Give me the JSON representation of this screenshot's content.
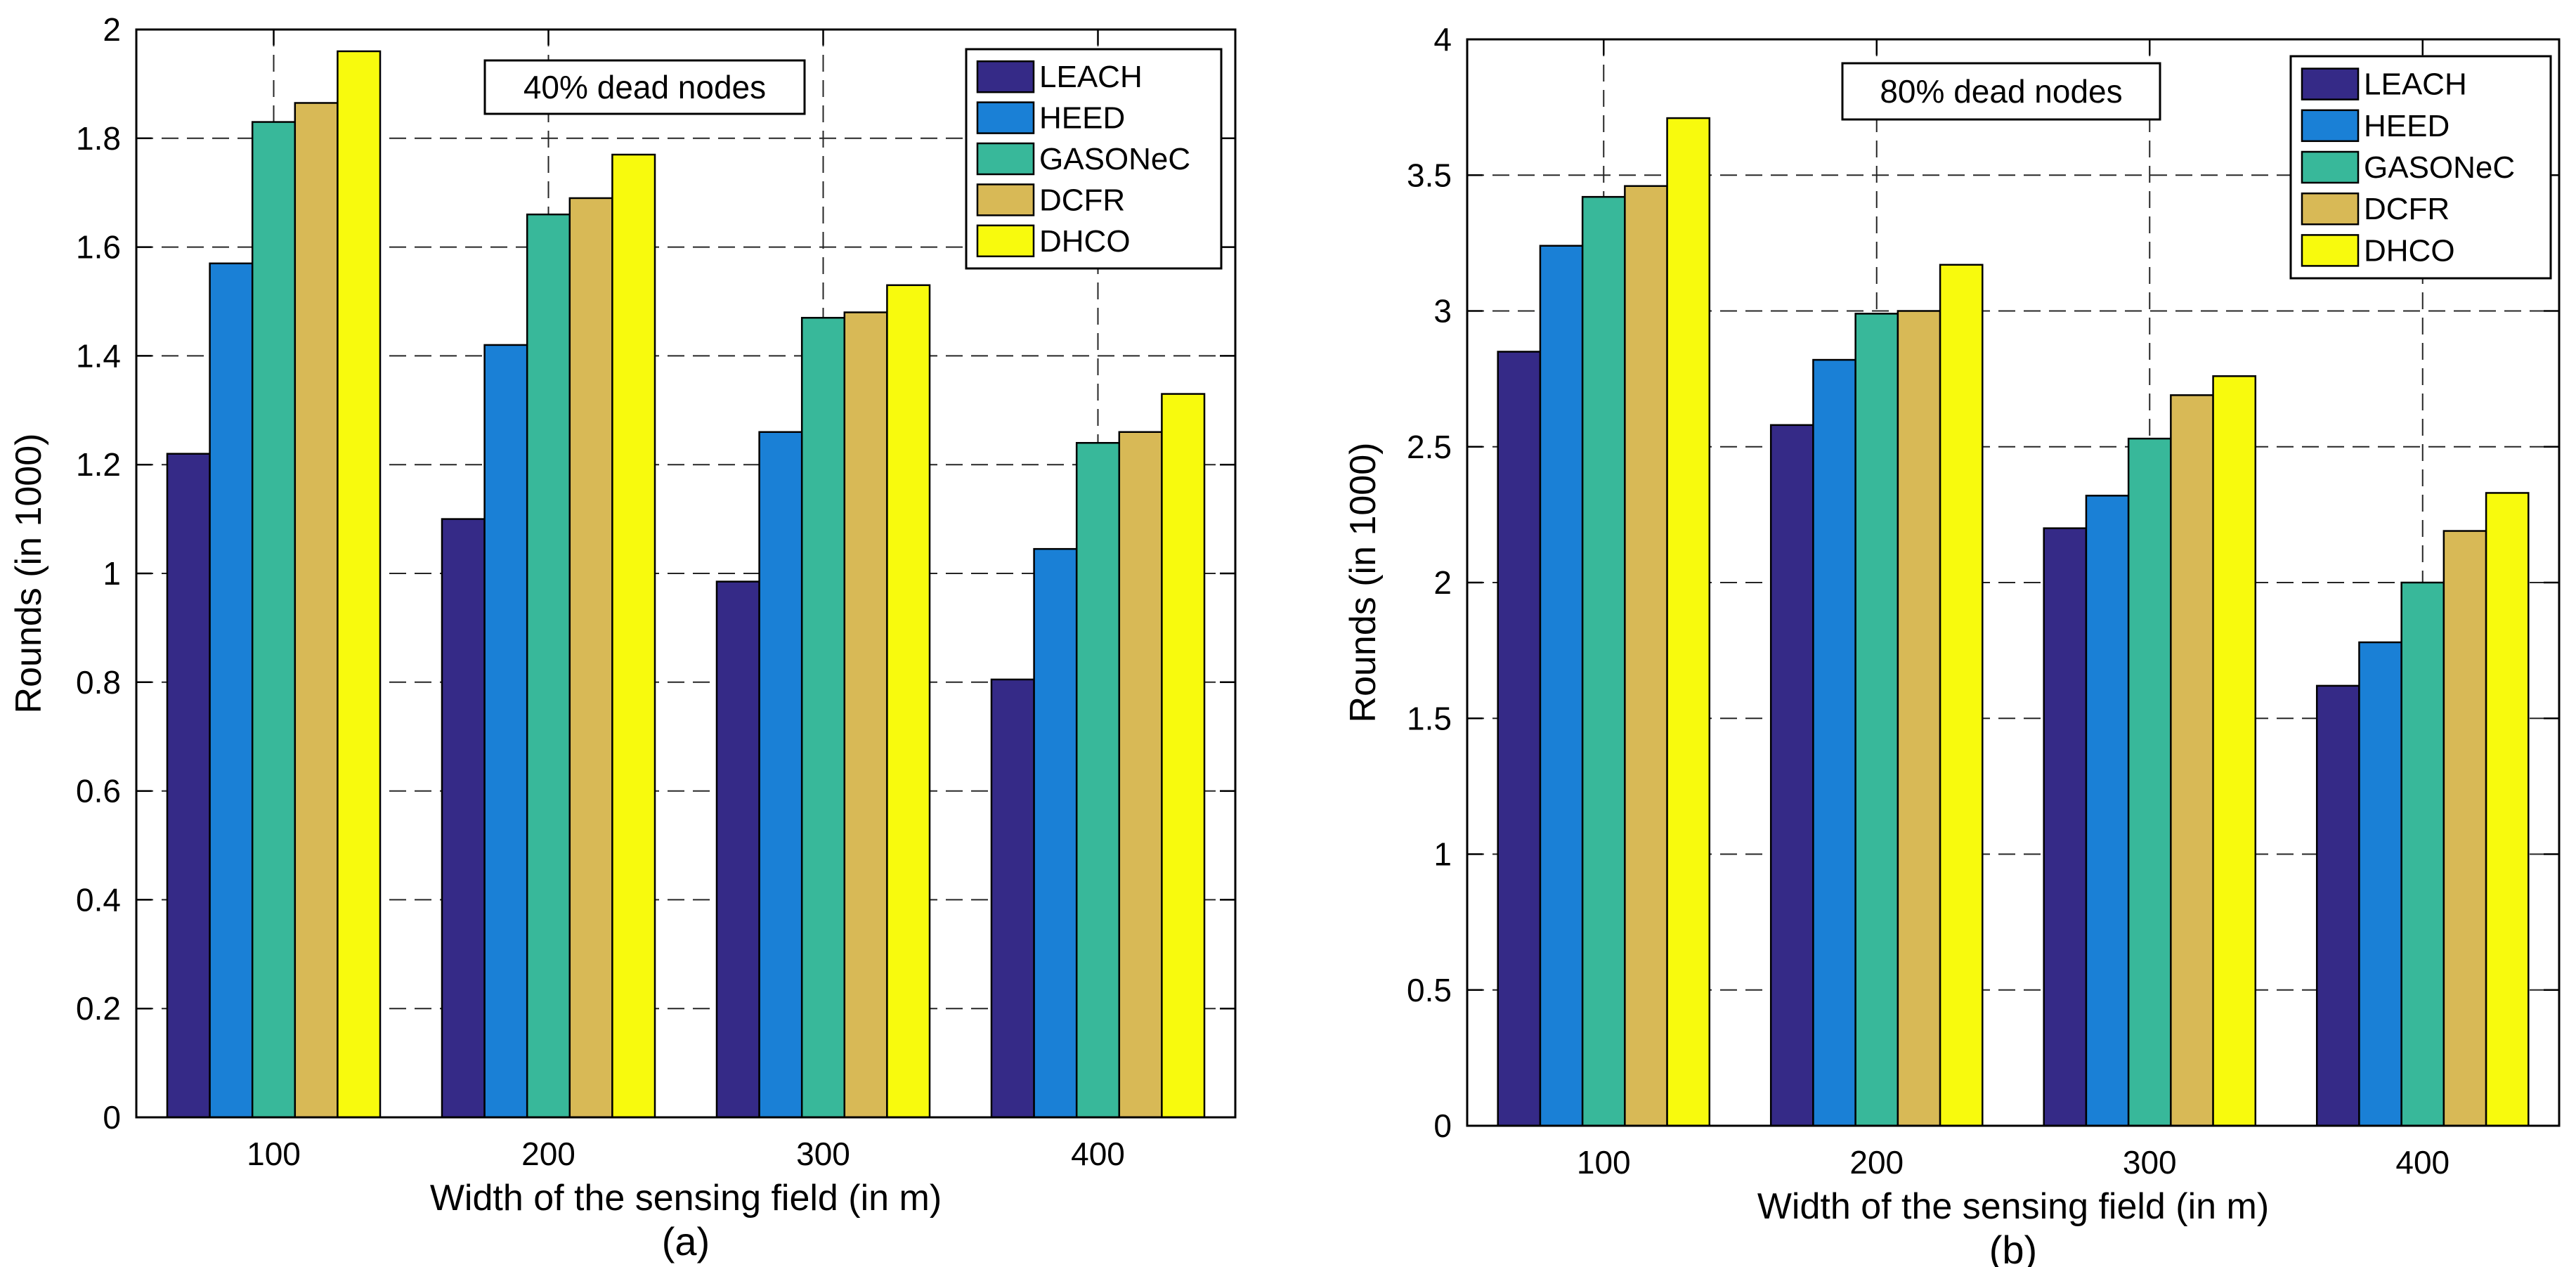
{
  "chart_data": [
    {
      "type": "bar",
      "panel_label": "(a)",
      "annotation": "40% dead nodes",
      "xlabel": "Width of the sensing field  (in  m)",
      "ylabel": "Rounds  (in 1000)",
      "categories": [
        "100",
        "200",
        "300",
        "400"
      ],
      "ylim": [
        0,
        2
      ],
      "yticks": [
        "0",
        "0.2",
        "0.4",
        "0.6",
        "0.8",
        "1",
        "1.2",
        "1.4",
        "1.6",
        "1.8",
        "2"
      ],
      "grid": true,
      "legend_position": "top-right",
      "series": [
        {
          "name": "LEACH",
          "color": "#352a87",
          "values": [
            1.22,
            1.1,
            0.985,
            0.805
          ]
        },
        {
          "name": "HEED",
          "color": "#1a80d6",
          "values": [
            1.57,
            1.42,
            1.26,
            1.045
          ]
        },
        {
          "name": "GASONeC",
          "color": "#38b89a",
          "values": [
            1.83,
            1.66,
            1.47,
            1.24
          ]
        },
        {
          "name": "DCFR",
          "color": "#d8b956",
          "values": [
            1.865,
            1.69,
            1.48,
            1.26
          ]
        },
        {
          "name": "DHCO",
          "color": "#f8fa0d",
          "values": [
            1.96,
            1.77,
            1.53,
            1.33
          ]
        }
      ]
    },
    {
      "type": "bar",
      "panel_label": "(b)",
      "annotation": "80% dead nodes",
      "xlabel": "Width of the sensing field  (in  m)",
      "ylabel": "Rounds  (in 1000)",
      "categories": [
        "100",
        "200",
        "300",
        "400"
      ],
      "ylim": [
        0,
        4
      ],
      "yticks": [
        "0",
        "0.5",
        "1",
        "1.5",
        "2",
        "2.5",
        "3",
        "3.5",
        "4"
      ],
      "grid": true,
      "legend_position": "top-right",
      "series": [
        {
          "name": "LEACH",
          "color": "#352a87",
          "values": [
            2.85,
            2.58,
            2.2,
            1.62
          ]
        },
        {
          "name": "HEED",
          "color": "#1a80d6",
          "values": [
            3.24,
            2.82,
            2.32,
            1.78
          ]
        },
        {
          "name": "GASONeC",
          "color": "#38b89a",
          "values": [
            3.42,
            2.99,
            2.53,
            2.0
          ]
        },
        {
          "name": "DCFR",
          "color": "#d8b956",
          "values": [
            3.46,
            3.0,
            2.69,
            2.19
          ]
        },
        {
          "name": "DHCO",
          "color": "#f8fa0d",
          "values": [
            3.71,
            3.17,
            2.76,
            2.33
          ]
        }
      ]
    }
  ]
}
